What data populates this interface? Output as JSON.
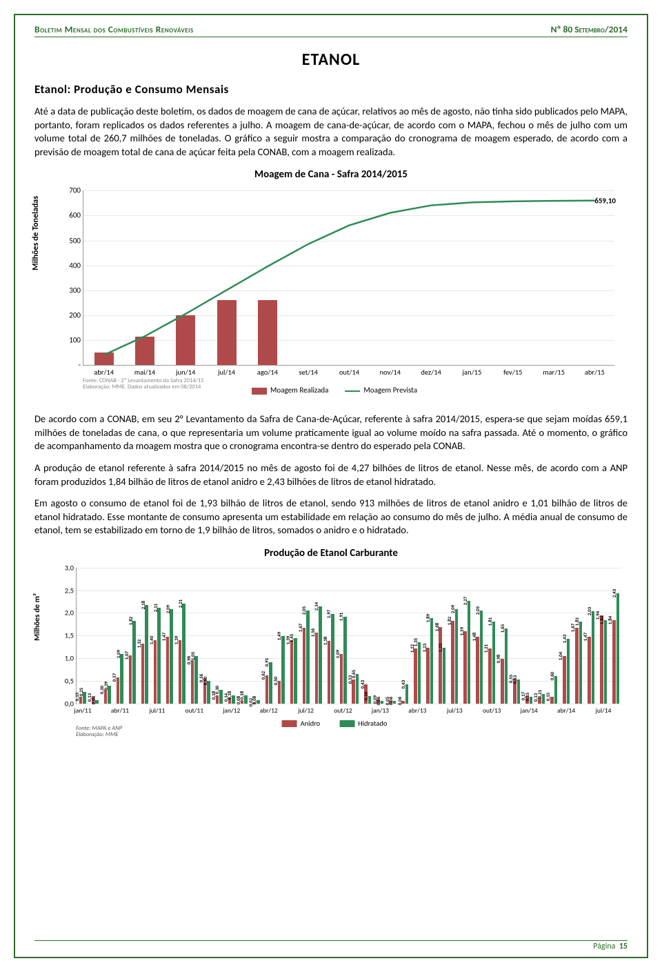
{
  "header": {
    "left": "Boletim Mensal dos Combustíveis Renováveis",
    "right": "Nº 80 Setembro/2014"
  },
  "main_title": "ETANOL",
  "section_title": "Etanol: Produção e Consumo Mensais",
  "paragraphs": [
    "Até a data de publicação deste boletim, os dados de moagem de cana de açúcar, relativos ao mês de agosto, não tinha sido publicados pelo MAPA, portanto, foram replicados os dados referentes a julho. A moagem de cana-de-açúcar, de acordo com o MAPA, fechou o mês de julho com um volume total de 260,7 milhões de toneladas. O gráfico a seguir mostra a comparação do cronograma de moagem esperado, de acordo com a previsão de moagem total de cana de açúcar feita pela CONAB, com a moagem realizada.",
    "De acordo com a CONAB, em seu 2° Levantamento da Safra de Cana-de-Açúcar, referente à safra 2014/2015, espera-se que sejam moídas 659,1 milhões de toneladas de cana, o que representaria um volume praticamente igual ao volume moído na safra passada. Até o momento, o gráfico de acompanhamento da moagem mostra que o cronograma encontra-se dentro do esperado pela CONAB.",
    "A produção de etanol referente à safra 2014/2015 no mês de agosto foi de 4,27 bilhões de litros de etanol. Nesse mês, de acordo com a ANP foram produzidos 1,84 bilhão de litros de etanol anidro e 2,43 bilhões de litros de etanol hidratado.",
    "Em agosto o consumo de etanol foi de 1,93 bilhão de litros de etanol, sendo 913 milhões de litros de etanol anidro e 1,01 bilhão de litros de etanol hidratado. Esse montante de consumo apresenta um estabilidade em relação ao consumo do mês de julho. A média anual de consumo de etanol, tem se estabilizado em torno de 1,9 bilhão de litros, somados o anidro e o hidratado."
  ],
  "chart1": {
    "title": "Moagem de Cana - Safra 2014/2015",
    "ylabel": "Milhões de Toneladas",
    "ymax": 700,
    "yticks": [
      100,
      200,
      300,
      400,
      500,
      600,
      700
    ],
    "ytick_zero": "-",
    "categories": [
      "abr/14",
      "mai/14",
      "jun/14",
      "jul/14",
      "ago/14",
      "set/14",
      "out/14",
      "nov/14",
      "dez/14",
      "jan/15",
      "fev/15",
      "mar/15",
      "abr/15"
    ],
    "bars": [
      50,
      115,
      200,
      260,
      260
    ],
    "bar_color": "#b04a4a",
    "line_points": [
      40,
      115,
      205,
      300,
      395,
      485,
      560,
      610,
      640,
      652,
      656,
      658,
      659.1
    ],
    "line_color": "#2e8b57",
    "end_label": "659,10",
    "footnote1": "Fonte: CONAB - 2º Levantamento da Safra 2014/15",
    "footnote2": "Elaboração: MME. Dados atualizados em 08/2014",
    "legend": [
      {
        "label": "Moagem Realizada",
        "type": "swatch",
        "color": "#b04a4a"
      },
      {
        "label": "Moagem Prevista",
        "type": "line",
        "color": "#2e8b57"
      }
    ],
    "grid_color": "#e6e6e6"
  },
  "chart2": {
    "title": "Produção de Etanol Carburante",
    "ylabel": "Milhões de m³",
    "ymax": 3.0,
    "yticks": [
      "0,0",
      "0,5",
      "1,0",
      "1,5",
      "2,0",
      "2,5",
      "3,0"
    ],
    "anidro_color": "#b04a4a",
    "hidratado_color": "#2e8b57",
    "x_labels": [
      "jan/11",
      "abr/11",
      "jul/11",
      "out/11",
      "jan/12",
      "abr/12",
      "jul/12",
      "out/12",
      "jan/13",
      "abr/13",
      "jul/13",
      "out/13",
      "jan/14",
      "abr/14",
      "jul/14"
    ],
    "x_label_every": 3,
    "groups": [
      {
        "a": 0.15,
        "h": 0.25,
        "al": "0,15",
        "hl": "0,25"
      },
      {
        "a": 0.13,
        "h": 0.08,
        "al": "0,13",
        "hl": "0,08"
      },
      {
        "a": 0.3,
        "h": 0.39,
        "al": "0,30",
        "hl": "0,39"
      },
      {
        "a": 0.57,
        "h": 1.09,
        "al": "0,57",
        "hl": "1,09"
      },
      {
        "a": 1.07,
        "h": 1.82,
        "al": "1,07",
        "hl": "1,82"
      },
      {
        "a": 1.32,
        "h": 2.18,
        "al": "1,32",
        "hl": "2,18"
      },
      {
        "a": 1.4,
        "h": 2.11,
        "al": "1,40",
        "hl": "2,11"
      },
      {
        "a": 1.47,
        "h": 2.09,
        "al": "1,47",
        "hl": "2,09"
      },
      {
        "a": 1.39,
        "h": 2.21,
        "al": "1,39",
        "hl": "2,21"
      },
      {
        "a": 0.96,
        "h": 1.05,
        "al": "0,96",
        "hl": "1,05"
      },
      {
        "a": 0.56,
        "h": 0.5,
        "al": "0,56",
        "hl": "0,50"
      },
      {
        "a": 0.18,
        "h": 0.3,
        "al": "0,18",
        "hl": "0,30"
      },
      {
        "a": 0.14,
        "h": 0.18,
        "al": "0,14",
        "hl": "0,18"
      },
      {
        "a": 0.08,
        "h": 0.18,
        "al": "0,08",
        "hl": "0,18"
      },
      {
        "a": 0.02,
        "h": 0.08,
        "al": "0,02",
        "hl": "0,08"
      },
      {
        "a": 0.62,
        "h": 0.91,
        "al": "0,62",
        "hl": "0,91"
      },
      {
        "a": 0.5,
        "h": 1.49,
        "al": "0,50",
        "hl": "1,49"
      },
      {
        "a": 1.39,
        "h": 1.45,
        "al": "1,39",
        "hl": "1,45"
      },
      {
        "a": 1.67,
        "h": 2.05,
        "al": "1,67",
        "hl": "2,05"
      },
      {
        "a": 1.56,
        "h": 2.14,
        "al": "1,56",
        "hl": "2,14"
      },
      {
        "a": 1.38,
        "h": 1.97,
        "al": "1,38",
        "hl": "1,97"
      },
      {
        "a": 1.09,
        "h": 1.91,
        "al": "1,09",
        "hl": "1,91"
      },
      {
        "a": 0.53,
        "h": 0.65,
        "al": "0,53",
        "hl": "0,65"
      },
      {
        "a": 0.43,
        "h": 0.16,
        "al": "0,43",
        "hl": "0,16"
      },
      {
        "a": 0.09,
        "h": 0.06,
        "al": "0,09",
        "hl": "0,06"
      },
      {
        "a": 0.05,
        "h": 0.06,
        "al": "0,05",
        "hl": "0,06"
      },
      {
        "a": 0.06,
        "h": 0.43,
        "al": "0,06",
        "hl": "0,43"
      },
      {
        "a": 1.22,
        "h": 1.35,
        "al": "1,22",
        "hl": "1,35"
      },
      {
        "a": 1.23,
        "h": 1.89,
        "al": "1,23",
        "hl": "1,89"
      },
      {
        "a": 1.68,
        "h": 1.23,
        "al": "1,68",
        "hl": "1,23"
      },
      {
        "a": 1.82,
        "h": 2.09,
        "al": "1,82",
        "hl": "2,09"
      },
      {
        "a": 1.59,
        "h": 2.27,
        "al": "1,59",
        "hl": "2,27"
      },
      {
        "a": 1.48,
        "h": 2.05,
        "al": "1,48",
        "hl": "2,05"
      },
      {
        "a": 1.21,
        "h": 1.81,
        "al": "1,21",
        "hl": "1,81"
      },
      {
        "a": 0.98,
        "h": 1.65,
        "al": "0,98",
        "hl": "1,65"
      },
      {
        "a": 0.55,
        "h": 0.53,
        "al": "0,55",
        "hl": "0,53"
      },
      {
        "a": 0.17,
        "h": 0.15,
        "al": "0,17",
        "hl": "0,15"
      },
      {
        "a": 0.13,
        "h": 0.21,
        "al": "0,13",
        "hl": "0,21"
      },
      {
        "a": 0.15,
        "h": 0.6,
        "al": "0,15",
        "hl": "0,60"
      },
      {
        "a": 1.04,
        "h": 1.43,
        "al": "1,04",
        "hl": "1,43"
      },
      {
        "a": 1.67,
        "h": 1.81,
        "al": "1,67",
        "hl": "1,81"
      },
      {
        "a": 1.47,
        "h": 2.03,
        "al": "1,47",
        "hl": "2,03"
      },
      {
        "a": 1.94,
        "h": 1.84,
        "al": "1,94",
        "hl": "1,84"
      },
      {
        "a": 1.84,
        "h": 2.43,
        "al": "1,84",
        "hl": "2,43"
      }
    ],
    "legend": [
      {
        "label": "Anidro",
        "color": "#b04a4a"
      },
      {
        "label": "Hidratado",
        "color": "#2e8b57"
      }
    ],
    "footnote1": "Fonte: MAPA e ANP",
    "footnote2": "Elaboração: MME"
  },
  "footer": {
    "label": "Página",
    "num": "15"
  }
}
